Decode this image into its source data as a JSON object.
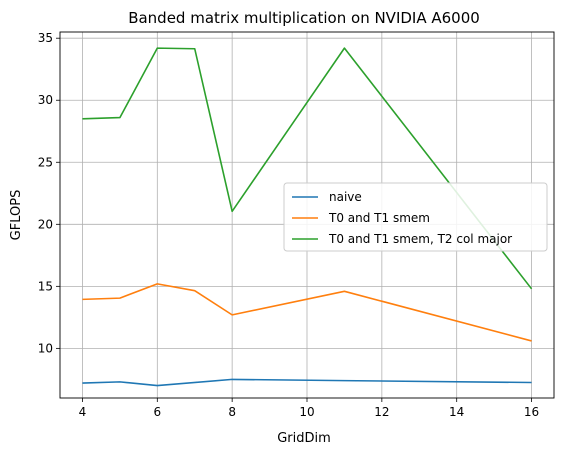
{
  "chart_data": {
    "type": "line",
    "title": "Banded matrix multiplication on NVIDIA A6000",
    "xlabel": "GridDim",
    "ylabel": "GFLOPS",
    "xlim": [
      3.4,
      16.6
    ],
    "ylim": [
      6.0,
      35.5
    ],
    "xticks": [
      4,
      6,
      8,
      10,
      12,
      14,
      16
    ],
    "yticks": [
      10,
      15,
      20,
      25,
      30,
      35
    ],
    "grid": true,
    "legend_position": "center-right",
    "series": [
      {
        "name": "naive",
        "color": "#1f77b4",
        "x": [
          4,
          5,
          6,
          8,
          11,
          16
        ],
        "y": [
          7.2,
          7.3,
          7.0,
          7.5,
          7.4,
          7.25
        ]
      },
      {
        "name": "T0 and T1 smem",
        "color": "#ff7f0e",
        "x": [
          4,
          5,
          6,
          7,
          8,
          11,
          16
        ],
        "y": [
          13.95,
          14.05,
          15.2,
          14.65,
          12.7,
          14.6,
          10.6
        ]
      },
      {
        "name": "T0 and T1 smem, T2 col major",
        "color": "#2ca02c",
        "x": [
          4,
          5,
          6,
          7,
          8,
          11,
          16
        ],
        "y": [
          28.5,
          28.6,
          34.2,
          34.15,
          21.05,
          34.2,
          14.8
        ]
      }
    ]
  }
}
